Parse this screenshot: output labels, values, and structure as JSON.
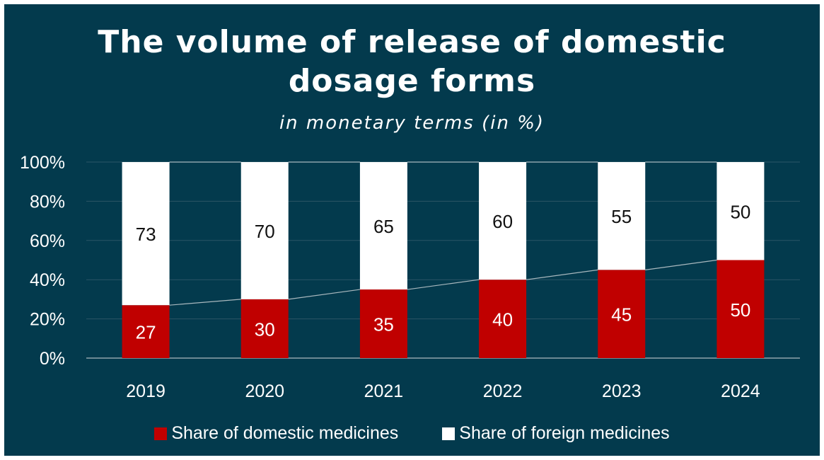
{
  "chart_data": {
    "type": "bar",
    "stacked": true,
    "title": "The volume of release of domestic dosage forms",
    "title_lines": [
      "The volume of release of domestic",
      "dosage forms"
    ],
    "subtitle": "in monetary terms (in %)",
    "categories": [
      "2019",
      "2020",
      "2021",
      "2022",
      "2023",
      "2024"
    ],
    "series": [
      {
        "name": "Share of domestic medicines",
        "values": [
          27,
          30,
          35,
          40,
          45,
          50
        ],
        "color": "#c00000"
      },
      {
        "name": "Share of foreign medicines",
        "values": [
          73,
          70,
          65,
          60,
          55,
          50
        ],
        "color": "#ffffff"
      }
    ],
    "ylim": [
      0,
      100
    ],
    "yticks": [
      "0%",
      "20%",
      "40%",
      "60%",
      "80%",
      "100%"
    ],
    "xlabel": "",
    "ylabel": "",
    "grid": true,
    "series_lines": true,
    "legend_position": "bottom"
  },
  "colors": {
    "background": "#033a4d",
    "gridline": "#2b5566",
    "text": "#ffffff"
  }
}
